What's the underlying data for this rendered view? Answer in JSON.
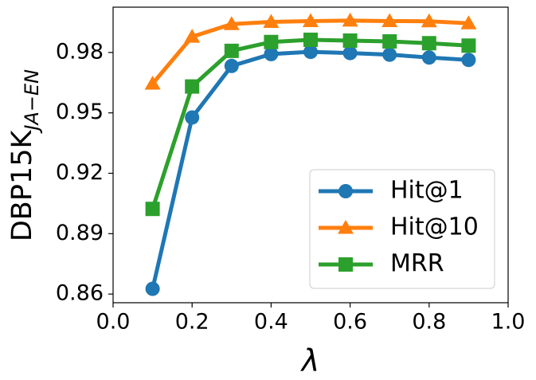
{
  "chart_data": {
    "type": "line",
    "xlabel": "λ",
    "ylabel": {
      "main": "DBP15K",
      "subscript": "JA−EN"
    },
    "xlim": [
      0.0,
      1.0
    ],
    "ylim": [
      0.8557,
      1.0025
    ],
    "x_ticks": [
      0.0,
      0.2,
      0.4,
      0.6,
      0.8,
      1.0
    ],
    "x_tick_labels": [
      "0.0",
      "0.2",
      "0.4",
      "0.6",
      "0.8",
      "1.0"
    ],
    "y_ticks": [
      0.86,
      0.89,
      0.92,
      0.95,
      0.98
    ],
    "y_tick_labels": [
      "0.86",
      "0.89",
      "0.92",
      "0.95",
      "0.98"
    ],
    "grid": false,
    "legend_position": "lower-right",
    "x": [
      0.1,
      0.2,
      0.3,
      0.4,
      0.5,
      0.6,
      0.7,
      0.8,
      0.9
    ],
    "series": [
      {
        "name": "Hit@1",
        "color": "#1f77b4",
        "marker": "circle",
        "values": [
          0.8626,
          0.9477,
          0.9733,
          0.9792,
          0.9803,
          0.9797,
          0.9789,
          0.9775,
          0.9763
        ]
      },
      {
        "name": "Hit@10",
        "color": "#ff7f0e",
        "marker": "triangle",
        "values": [
          0.9645,
          0.9878,
          0.9941,
          0.9952,
          0.9956,
          0.9958,
          0.9956,
          0.9955,
          0.9945
        ]
      },
      {
        "name": "MRR",
        "color": "#2ca02c",
        "marker": "square",
        "values": [
          0.9023,
          0.9631,
          0.9808,
          0.9852,
          0.9863,
          0.9859,
          0.9855,
          0.9846,
          0.9834
        ]
      }
    ]
  }
}
